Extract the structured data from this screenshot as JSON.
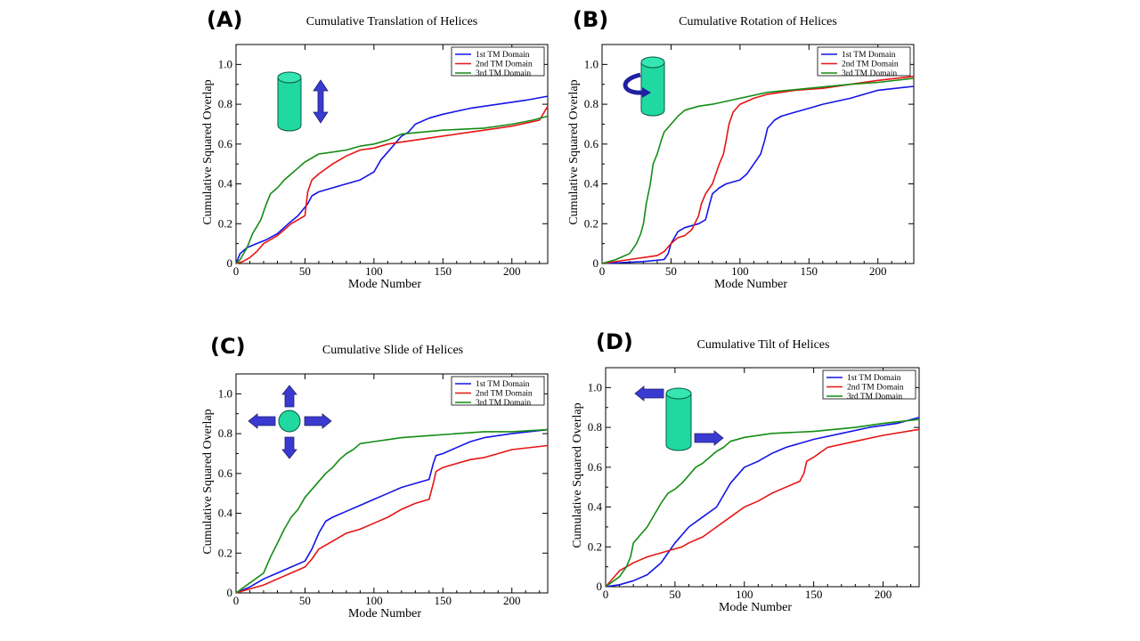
{
  "figure": {
    "colors": {
      "blue": "#1414e6",
      "red": "#e61414",
      "green": "#148c14",
      "cylinder": "#1fd9a0",
      "arrow": "#3a3ad0"
    }
  },
  "chart_data": [
    {
      "panel": "(A)",
      "type": "line",
      "title": "Cumulative Translation of Helices",
      "xlabel": "Mode Number",
      "ylabel": "Cumulative Squared Overlap",
      "xlim": [
        0,
        226
      ],
      "ylim": [
        0,
        1.1
      ],
      "xticks": [
        0,
        50,
        100,
        150,
        200
      ],
      "yticks": [
        "0",
        "0.2",
        "0.4",
        "0.6",
        "0.8",
        "1.0"
      ],
      "icon": "translation",
      "legend": {
        "placement": "top-right",
        "entries": [
          "1st TM Domain",
          "2nd TM Domain",
          "3rd TM Domain"
        ]
      },
      "series": [
        {
          "name": "1st TM Domain",
          "color": "blue",
          "x": [
            0,
            3,
            8,
            15,
            22,
            30,
            38,
            45,
            52,
            55,
            60,
            70,
            80,
            90,
            100,
            105,
            110,
            115,
            120,
            125,
            130,
            140,
            150,
            170,
            190,
            210,
            226
          ],
          "y": [
            0,
            0.05,
            0.08,
            0.1,
            0.12,
            0.15,
            0.2,
            0.24,
            0.3,
            0.34,
            0.36,
            0.38,
            0.4,
            0.42,
            0.46,
            0.52,
            0.56,
            0.6,
            0.64,
            0.66,
            0.7,
            0.73,
            0.75,
            0.78,
            0.8,
            0.82,
            0.84
          ]
        },
        {
          "name": "2nd TM Domain",
          "color": "red",
          "x": [
            0,
            5,
            10,
            15,
            20,
            30,
            40,
            50,
            52,
            55,
            60,
            70,
            80,
            90,
            100,
            110,
            120,
            130,
            140,
            160,
            180,
            200,
            220,
            226
          ],
          "y": [
            0,
            0.01,
            0.03,
            0.06,
            0.1,
            0.14,
            0.2,
            0.24,
            0.36,
            0.42,
            0.45,
            0.5,
            0.54,
            0.57,
            0.58,
            0.6,
            0.61,
            0.62,
            0.63,
            0.65,
            0.67,
            0.69,
            0.72,
            0.79
          ]
        },
        {
          "name": "3rd TM Domain",
          "color": "green",
          "x": [
            0,
            3,
            8,
            12,
            18,
            22,
            25,
            30,
            35,
            40,
            45,
            50,
            55,
            60,
            70,
            80,
            90,
            100,
            110,
            120,
            150,
            180,
            200,
            215,
            226
          ],
          "y": [
            0,
            0.02,
            0.08,
            0.15,
            0.22,
            0.3,
            0.35,
            0.38,
            0.42,
            0.45,
            0.48,
            0.51,
            0.53,
            0.55,
            0.56,
            0.57,
            0.59,
            0.6,
            0.62,
            0.65,
            0.67,
            0.68,
            0.7,
            0.72,
            0.74
          ]
        }
      ]
    },
    {
      "panel": "(B)",
      "type": "line",
      "title": "Cumulative Rotation of Helices",
      "xlabel": "Mode Number",
      "ylabel": "Cumulative Squared Overlap",
      "xlim": [
        0,
        226
      ],
      "ylim": [
        0,
        1.1
      ],
      "xticks": [
        0,
        50,
        100,
        150,
        200
      ],
      "yticks": [
        "0",
        "0.2",
        "0.4",
        "0.6",
        "0.8",
        "1.0"
      ],
      "icon": "rotation",
      "legend": {
        "placement": "top-right",
        "entries": [
          "1st TM Domain",
          "2nd TM Domain",
          "3rd TM Domain"
        ]
      },
      "series": [
        {
          "name": "1st TM Domain",
          "color": "blue",
          "x": [
            0,
            30,
            45,
            48,
            50,
            55,
            60,
            70,
            75,
            78,
            80,
            85,
            90,
            100,
            105,
            110,
            115,
            118,
            120,
            125,
            130,
            140,
            150,
            160,
            180,
            200,
            226
          ],
          "y": [
            0,
            0.01,
            0.02,
            0.05,
            0.1,
            0.16,
            0.18,
            0.2,
            0.22,
            0.3,
            0.35,
            0.38,
            0.4,
            0.42,
            0.45,
            0.5,
            0.55,
            0.62,
            0.68,
            0.72,
            0.74,
            0.76,
            0.78,
            0.8,
            0.83,
            0.87,
            0.89
          ]
        },
        {
          "name": "2nd TM Domain",
          "color": "red",
          "x": [
            0,
            20,
            40,
            45,
            50,
            55,
            60,
            65,
            70,
            72,
            75,
            80,
            85,
            88,
            90,
            92,
            95,
            100,
            110,
            120,
            140,
            160,
            180,
            200,
            226
          ],
          "y": [
            0,
            0.02,
            0.04,
            0.06,
            0.1,
            0.13,
            0.14,
            0.17,
            0.24,
            0.3,
            0.35,
            0.4,
            0.5,
            0.55,
            0.62,
            0.7,
            0.76,
            0.8,
            0.83,
            0.85,
            0.87,
            0.88,
            0.9,
            0.92,
            0.94
          ]
        },
        {
          "name": "3rd TM Domain",
          "color": "green",
          "x": [
            0,
            10,
            20,
            25,
            28,
            30,
            32,
            35,
            37,
            40,
            43,
            45,
            50,
            55,
            60,
            70,
            80,
            100,
            120,
            150,
            180,
            200,
            226
          ],
          "y": [
            0,
            0.02,
            0.05,
            0.1,
            0.15,
            0.2,
            0.3,
            0.4,
            0.5,
            0.55,
            0.62,
            0.66,
            0.7,
            0.74,
            0.77,
            0.79,
            0.8,
            0.83,
            0.86,
            0.88,
            0.9,
            0.91,
            0.93
          ]
        }
      ]
    },
    {
      "panel": "(C)",
      "type": "line",
      "title": "Cumulative Slide of Helices",
      "xlabel": "Mode Number",
      "ylabel": "Cumulative Squared Overlap",
      "xlim": [
        0,
        226
      ],
      "ylim": [
        0,
        1.1
      ],
      "xticks": [
        0,
        50,
        100,
        150,
        200
      ],
      "yticks": [
        "0",
        "0.2",
        "0.4",
        "0.6",
        "0.8",
        "1.0"
      ],
      "icon": "slide",
      "legend": {
        "placement": "top-right",
        "entries": [
          "1st TM Domain",
          "2nd TM Domain",
          "3rd TM Domain"
        ]
      },
      "series": [
        {
          "name": "1st TM Domain",
          "color": "blue",
          "x": [
            0,
            10,
            20,
            30,
            40,
            50,
            55,
            60,
            65,
            70,
            80,
            90,
            100,
            110,
            120,
            130,
            140,
            143,
            145,
            150,
            160,
            170,
            180,
            190,
            200,
            226
          ],
          "y": [
            0,
            0.03,
            0.07,
            0.1,
            0.13,
            0.16,
            0.22,
            0.3,
            0.36,
            0.38,
            0.41,
            0.44,
            0.47,
            0.5,
            0.53,
            0.55,
            0.57,
            0.65,
            0.69,
            0.7,
            0.73,
            0.76,
            0.78,
            0.79,
            0.8,
            0.82
          ]
        },
        {
          "name": "2nd TM Domain",
          "color": "red",
          "x": [
            0,
            10,
            20,
            30,
            40,
            50,
            55,
            60,
            65,
            70,
            80,
            90,
            100,
            110,
            120,
            130,
            140,
            143,
            145,
            150,
            160,
            170,
            180,
            190,
            200,
            226
          ],
          "y": [
            0,
            0.02,
            0.04,
            0.07,
            0.1,
            0.13,
            0.17,
            0.22,
            0.24,
            0.26,
            0.3,
            0.32,
            0.35,
            0.38,
            0.42,
            0.45,
            0.47,
            0.55,
            0.61,
            0.63,
            0.65,
            0.67,
            0.68,
            0.7,
            0.72,
            0.74
          ]
        },
        {
          "name": "3rd TM Domain",
          "color": "green",
          "x": [
            0,
            10,
            20,
            25,
            30,
            35,
            40,
            45,
            50,
            55,
            60,
            65,
            70,
            75,
            80,
            85,
            90,
            100,
            110,
            120,
            140,
            160,
            180,
            200,
            226
          ],
          "y": [
            0,
            0.05,
            0.1,
            0.18,
            0.25,
            0.32,
            0.38,
            0.42,
            0.48,
            0.52,
            0.56,
            0.6,
            0.63,
            0.67,
            0.7,
            0.72,
            0.75,
            0.76,
            0.77,
            0.78,
            0.79,
            0.8,
            0.81,
            0.81,
            0.82
          ]
        }
      ]
    },
    {
      "panel": "(D)",
      "type": "line",
      "title": "Cumulative Tilt of Helices",
      "xlabel": "Mode Number",
      "ylabel": "Cumulative Squared Overlap",
      "xlim": [
        0,
        226
      ],
      "ylim": [
        0,
        1.1
      ],
      "xticks": [
        0,
        50,
        100,
        150,
        200
      ],
      "yticks": [
        "0",
        "0.2",
        "0.4",
        "0.6",
        "0.8",
        "1.0"
      ],
      "icon": "tilt",
      "legend": {
        "placement": "top-right",
        "entries": [
          "1st TM Domain",
          "2nd TM Domain",
          "3rd TM Domain"
        ]
      },
      "series": [
        {
          "name": "1st TM Domain",
          "color": "blue",
          "x": [
            0,
            10,
            20,
            30,
            40,
            45,
            50,
            55,
            60,
            70,
            80,
            85,
            90,
            95,
            100,
            110,
            120,
            130,
            140,
            150,
            170,
            190,
            210,
            226
          ],
          "y": [
            0,
            0.01,
            0.03,
            0.06,
            0.12,
            0.17,
            0.22,
            0.26,
            0.3,
            0.35,
            0.4,
            0.46,
            0.52,
            0.56,
            0.6,
            0.63,
            0.67,
            0.7,
            0.72,
            0.74,
            0.77,
            0.8,
            0.82,
            0.85
          ]
        },
        {
          "name": "2nd TM Domain",
          "color": "red",
          "x": [
            0,
            5,
            10,
            15,
            20,
            30,
            40,
            50,
            55,
            60,
            70,
            80,
            90,
            100,
            110,
            120,
            130,
            140,
            143,
            145,
            150,
            160,
            180,
            200,
            226
          ],
          "y": [
            0,
            0.04,
            0.08,
            0.1,
            0.12,
            0.15,
            0.17,
            0.19,
            0.2,
            0.22,
            0.25,
            0.3,
            0.35,
            0.4,
            0.43,
            0.47,
            0.5,
            0.53,
            0.57,
            0.63,
            0.65,
            0.7,
            0.73,
            0.76,
            0.79
          ]
        },
        {
          "name": "3rd TM Domain",
          "color": "green",
          "x": [
            0,
            10,
            15,
            18,
            20,
            25,
            30,
            35,
            40,
            45,
            50,
            55,
            60,
            65,
            70,
            75,
            80,
            85,
            90,
            100,
            120,
            150,
            180,
            200,
            226
          ],
          "y": [
            0,
            0.05,
            0.1,
            0.15,
            0.22,
            0.26,
            0.3,
            0.36,
            0.42,
            0.47,
            0.49,
            0.52,
            0.56,
            0.6,
            0.62,
            0.65,
            0.68,
            0.7,
            0.73,
            0.75,
            0.77,
            0.78,
            0.8,
            0.82,
            0.84
          ]
        }
      ]
    }
  ]
}
